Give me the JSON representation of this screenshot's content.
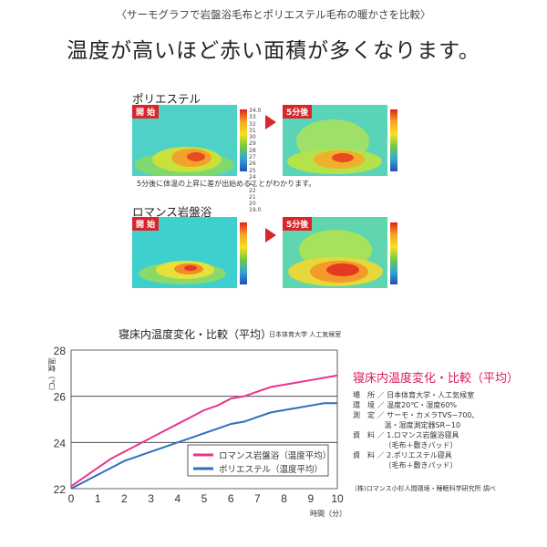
{
  "subtitle": "〈サーモグラフで岩盤浴毛布とポリエステル毛布の暖かさを比較〉",
  "headline": "温度が高いほど赤い面積が多くなります。",
  "thermo_sections": [
    {
      "title": "ポリエステル",
      "start_label": "開 始",
      "after_label": "5分後"
    },
    {
      "title": "ロマンス岩盤浴",
      "start_label": "開 始",
      "after_label": "5分後"
    }
  ],
  "thermo_note": "5分後に体温の上昇に差が出始めることがわかります。",
  "scale_ticks": [
    "34.0",
    "33",
    "32",
    "31",
    "30",
    "29",
    "28",
    "27",
    "26",
    "25",
    "24",
    "23",
    "22",
    "21",
    "20",
    "19.0"
  ],
  "chart_heading": {
    "title": "寝床内温度変化・比較（平均）",
    "source": "日本体育大学 人工気候室"
  },
  "right_panel": {
    "title": "寝床内温度変化・比較（平均）",
    "lines": [
      "場　所 ／ 日本体育大学・人工気候室",
      "環　境 ／ 温度20℃・湿度60%",
      "測　定 ／ サーモ・カメラTVS−700、",
      "　　　　 温・湿度測定器SR−10",
      "資　料 ／ 1.ロマンス岩盤浴寝具",
      "　　　　 （毛布＋敷きパッド）",
      "資　料 ／ 2.ポリエステル寝具",
      "　　　　 （毛布＋敷きパッド）"
    ],
    "footnote": "（株)ロマンス小杉人間環境・睡眠科学研究所 調べ"
  },
  "chart_data": {
    "type": "line",
    "ylabel": "温度（℃）",
    "xlabel": "時間（分）",
    "xlim": [
      0,
      10
    ],
    "ylim": [
      22,
      28
    ],
    "x_ticks": [
      0,
      1,
      2,
      3,
      4,
      5,
      6,
      7,
      8,
      9,
      10
    ],
    "y_ticks": [
      22,
      24,
      26,
      28
    ],
    "grid": true,
    "legend_position": "bottom-right",
    "colors": {
      "romance": "#e8348f",
      "polyester": "#2f6fc0",
      "grid": "#333333"
    },
    "x": [
      0,
      0.5,
      1,
      1.5,
      2,
      2.5,
      3,
      3.5,
      4,
      4.5,
      5,
      5.5,
      6,
      6.5,
      7,
      7.5,
      8,
      8.5,
      9,
      9.5,
      10
    ],
    "series": [
      {
        "name": "ロマンス岩盤浴（温度平均）",
        "values": [
          22.1,
          22.5,
          22.9,
          23.3,
          23.6,
          23.9,
          24.2,
          24.5,
          24.8,
          25.1,
          25.4,
          25.6,
          25.9,
          26.0,
          26.2,
          26.4,
          26.5,
          26.6,
          26.7,
          26.8,
          26.9
        ]
      },
      {
        "name": "ポリエステル（温度平均）",
        "values": [
          22.0,
          22.3,
          22.6,
          22.9,
          23.2,
          23.4,
          23.6,
          23.8,
          24.0,
          24.2,
          24.4,
          24.6,
          24.8,
          24.9,
          25.1,
          25.3,
          25.4,
          25.5,
          25.6,
          25.7,
          25.7
        ]
      }
    ]
  }
}
